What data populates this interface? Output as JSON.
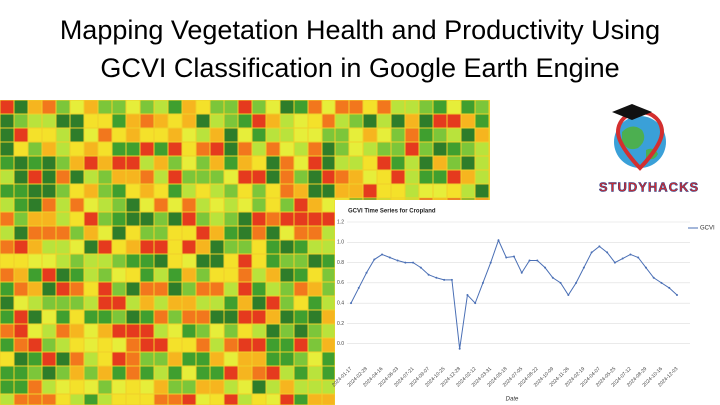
{
  "header": {
    "title": [
      "Mapping Vegetation Health and Productivity Using",
      "GCVI Classification in Google Earth Engine"
    ]
  },
  "logo": {
    "text": "STUDYHACKS"
  },
  "chart_data": {
    "type": "line",
    "title": "GCVI Time Series for Cropland",
    "x_label": "Date",
    "categories": [
      "2024-01-17",
      null,
      "2024-02-28",
      null,
      "2024-04-16",
      null,
      "2024-06-03",
      null,
      "2024-07-21",
      null,
      "2024-09-07",
      null,
      "2024-10-25",
      null,
      "2024-12-28",
      null,
      "2024-02-12",
      null,
      "2024-03-31",
      null,
      "2024-05-18",
      null,
      "2024-07-05",
      null,
      "2024-08-22",
      null,
      "2024-10-09",
      null,
      "2024-11-26",
      null,
      "2024-02-19",
      null,
      "2024-04-07",
      null,
      "2024-05-25",
      null,
      "2024-07-12",
      null,
      "2024-08-29",
      null,
      "2024-10-16",
      null,
      "2024-12-03"
    ],
    "series": [
      {
        "name": "GCVI",
        "color": "#4a6fb5",
        "values": [
          0.4,
          0.55,
          0.7,
          0.83,
          0.88,
          0.85,
          0.82,
          0.8,
          0.8,
          0.75,
          0.68,
          0.65,
          0.63,
          0.63,
          -0.05,
          0.48,
          0.4,
          0.6,
          0.8,
          1.02,
          0.85,
          0.86,
          0.7,
          0.82,
          0.82,
          0.75,
          0.65,
          0.6,
          0.48,
          0.6,
          0.75,
          0.9,
          0.96,
          0.9,
          0.8,
          0.84,
          0.88,
          0.85,
          0.75,
          0.65,
          0.6,
          0.55,
          0.48
        ]
      }
    ],
    "ylim": [
      -0.2,
      1.2
    ],
    "yticks": [
      {
        "value": 0,
        "label": "0.0"
      },
      0.2,
      0.4,
      0.6,
      0.8,
      {
        "value": 1,
        "label": "1.0"
      },
      1.2
    ],
    "grid": true,
    "legend": "right"
  }
}
